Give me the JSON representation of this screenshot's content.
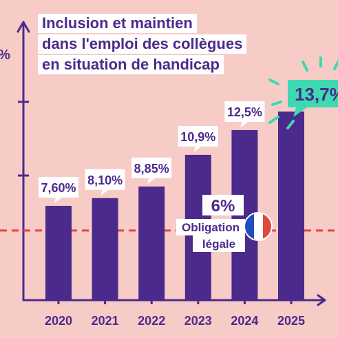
{
  "chart_data": {
    "type": "bar",
    "title_lines": [
      "Inclusion et maintien",
      "dans l'emploi des collègues",
      "en situation de handicap"
    ],
    "categories": [
      "2020",
      "2021",
      "2022",
      "2023",
      "2024",
      "2025"
    ],
    "values": [
      7.6,
      8.1,
      8.85,
      10.9,
      12.5,
      13.7
    ],
    "labels": [
      "7,60%",
      "8,10%",
      "8,85%",
      "10,9%",
      "12,5%",
      "13,7%"
    ],
    "y_axis_symbol": "%",
    "ylim": [
      0,
      18
    ],
    "grid": false,
    "reference_line": {
      "value": 6,
      "value_label": "6%",
      "caption_lines": [
        "Obligation",
        "légale"
      ]
    }
  },
  "colors": {
    "background": "#f7ccc7",
    "bar": "#4b2a8c",
    "axis": "#4b2a8c",
    "label_box": "#ffffff",
    "highlight_box": "#3dd9b0",
    "sparkle": "#3dd9b0",
    "reference_line": "#e0473e",
    "flag_blue": "#1f4fbf",
    "flag_white": "#ffffff",
    "flag_red": "#e0473e"
  },
  "icons": {
    "flag": "france-flag-icon"
  }
}
